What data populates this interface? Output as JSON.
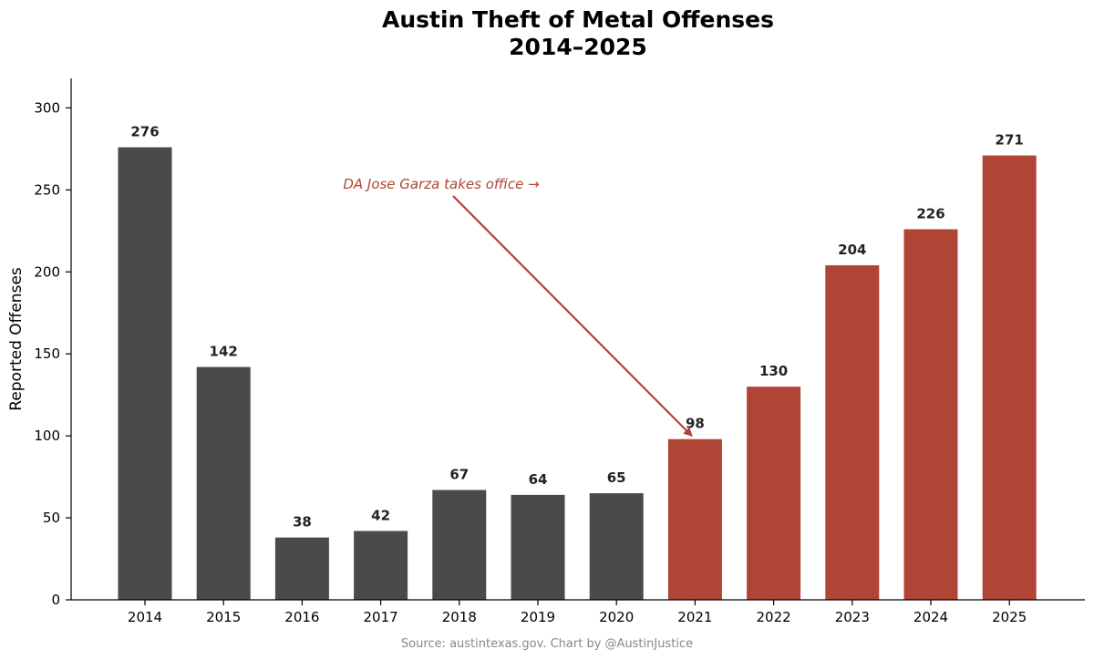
{
  "chart_data": {
    "type": "bar",
    "title": "Austin Theft of Metal Offenses",
    "subtitle": "2014–2025",
    "xlabel": "",
    "ylabel": "Reported Offenses",
    "categories": [
      "2014",
      "2015",
      "2016",
      "2017",
      "2018",
      "2019",
      "2020",
      "2021",
      "2022",
      "2023",
      "2024",
      "2025"
    ],
    "values": [
      276,
      142,
      38,
      42,
      67,
      64,
      65,
      98,
      130,
      204,
      226,
      271
    ],
    "ylim": [
      0,
      318
    ],
    "yticks": [
      0,
      50,
      100,
      150,
      200,
      250,
      300
    ],
    "grid": false,
    "legend": "none",
    "colors": {
      "before": "#4a4a4a",
      "after": "#b04435",
      "annotation": "#b04435"
    },
    "highlight_from": "2021",
    "annotation": {
      "text": "DA Jose Garza takes office →",
      "points_to": {
        "category": "2021",
        "value": 98
      }
    },
    "source": "Source: austintexas.gov. Chart by @AustinJustice"
  }
}
